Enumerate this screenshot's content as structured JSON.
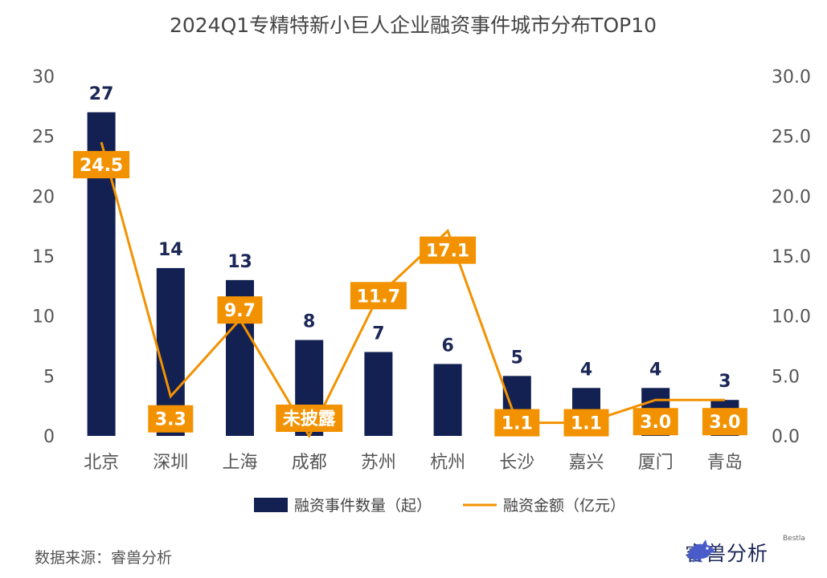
{
  "chart_data": {
    "type": "bar+line",
    "title": "2024Q1专精特新小巨人企业融资事件城市分布TOP10",
    "categories": [
      "北京",
      "深圳",
      "上海",
      "成都",
      "苏州",
      "杭州",
      "长沙",
      "嘉兴",
      "厦门",
      "青岛"
    ],
    "series": [
      {
        "name": "融资事件数量（起）",
        "type": "bar",
        "axis": "left",
        "values": [
          27,
          14,
          13,
          8,
          7,
          6,
          5,
          4,
          4,
          3
        ],
        "labels": [
          "27",
          "14",
          "13",
          "8",
          "7",
          "6",
          "5",
          "4",
          "4",
          "3"
        ]
      },
      {
        "name": "融资金额（亿元）",
        "type": "line",
        "axis": "right",
        "values": [
          24.5,
          3.3,
          9.7,
          0,
          11.7,
          17.1,
          1.1,
          1.1,
          3.0,
          3.0
        ],
        "labels": [
          "24.5",
          "3.3",
          "9.7",
          "未披露",
          "11.7",
          "17.1",
          "1.1",
          "1.1",
          "3.0",
          "3.0"
        ]
      }
    ],
    "y_left": {
      "min": 0,
      "max": 30,
      "ticks": [
        "0",
        "5",
        "10",
        "15",
        "20",
        "25",
        "30"
      ]
    },
    "y_right": {
      "min": 0,
      "max": 30,
      "ticks": [
        "0.0",
        "5.0",
        "10.0",
        "15.0",
        "20.0",
        "25.0",
        "30.0"
      ]
    },
    "legend_position": "bottom",
    "grid": false,
    "colors": {
      "bar": "#132152",
      "line": "#f39200",
      "label_text": "#1b2756",
      "tag_text": "#ffffff"
    }
  },
  "footer": {
    "source": "数据来源：睿兽分析",
    "brand_name": "睿兽分析",
    "brand_sub": "Bestla"
  }
}
